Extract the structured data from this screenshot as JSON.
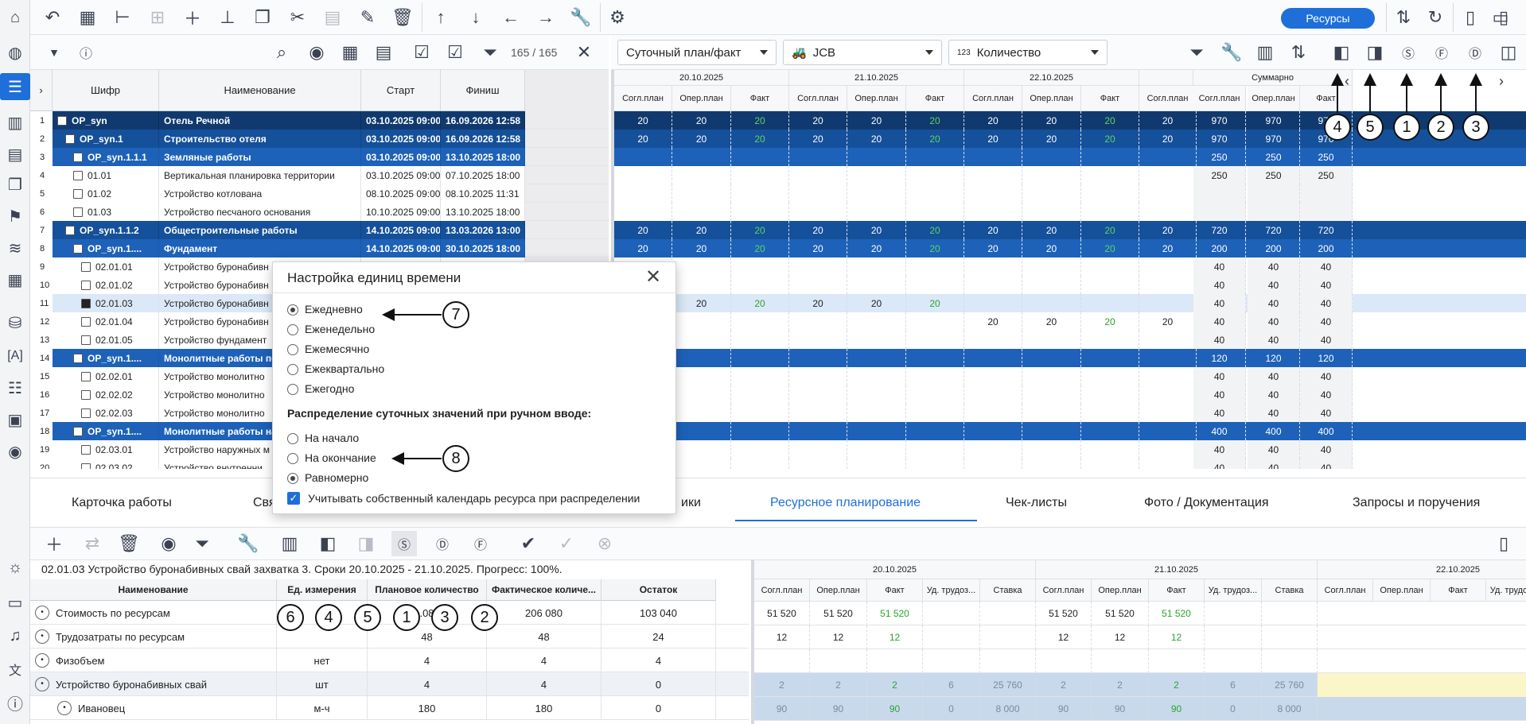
{
  "toolbar": {
    "resources_button": "Ресурсы"
  },
  "filter": {
    "count": "165 / 165"
  },
  "right_controls": {
    "mode": "Суточный план/факт",
    "resource": "JCB",
    "measure": "Количество",
    "summary": "Суммарно"
  },
  "columns": {
    "code": "Шифр",
    "name": "Наименование",
    "start": "Старт",
    "finish": "Финиш"
  },
  "dates": [
    "20.10.2025",
    "21.10.2025",
    "22.10.2025"
  ],
  "subcols": [
    "Согл.план",
    "Опер.план",
    "Факт"
  ],
  "tasks": [
    {
      "n": "1",
      "code": "OP_syn",
      "name": "Отель Речной",
      "start": "03.10.2025 09:00",
      "finish": "16.09.2026 12:58",
      "lvl": "lvl0",
      "ind": 0,
      "vals": [
        "20",
        "20",
        "20",
        "20",
        "20",
        "20",
        "20",
        "20",
        "20",
        "20"
      ],
      "sum": [
        "970",
        "970",
        "970"
      ]
    },
    {
      "n": "2",
      "code": "OP_syn.1",
      "name": "Строительство отеля",
      "start": "03.10.2025 09:00",
      "finish": "16.09.2026 12:58",
      "lvl": "lvl1",
      "ind": 1,
      "vals": [
        "20",
        "20",
        "20",
        "20",
        "20",
        "20",
        "20",
        "20",
        "20",
        "20"
      ],
      "sum": [
        "970",
        "970",
        "970"
      ]
    },
    {
      "n": "3",
      "code": "OP_syn.1.1.1",
      "name": "Земляные работы",
      "start": "03.10.2025 09:00",
      "finish": "13.10.2025 18:00",
      "lvl": "lvl2",
      "ind": 2,
      "vals": [
        "",
        "",
        "",
        "",
        "",
        "",
        "",
        "",
        "",
        ""
      ],
      "sum": [
        "250",
        "250",
        "250"
      ]
    },
    {
      "n": "4",
      "code": "01.01",
      "name": "Вертикальная планировка территории",
      "start": "03.10.2025 09:00",
      "finish": "07.10.2025 18:00",
      "lvl": "leaf",
      "ind": 2,
      "vals": [
        "",
        "",
        "",
        "",
        "",
        "",
        "",
        "",
        "",
        ""
      ],
      "sum": [
        "250",
        "250",
        "250"
      ]
    },
    {
      "n": "5",
      "code": "01.02",
      "name": "Устройство котлована",
      "start": "08.10.2025 09:00",
      "finish": "08.10.2025 11:31",
      "lvl": "leaf",
      "ind": 2,
      "vals": [
        "",
        "",
        "",
        "",
        "",
        "",
        "",
        "",
        "",
        ""
      ],
      "sum": [
        "",
        "",
        ""
      ]
    },
    {
      "n": "6",
      "code": "01.03",
      "name": "Устройство песчаного основания",
      "start": "10.10.2025 09:00",
      "finish": "13.10.2025 18:00",
      "lvl": "leaf",
      "ind": 2,
      "vals": [
        "",
        "",
        "",
        "",
        "",
        "",
        "",
        "",
        "",
        ""
      ],
      "sum": [
        "",
        "",
        ""
      ]
    },
    {
      "n": "7",
      "code": "OP_syn.1.1.2",
      "name": "Общестроительные работы",
      "start": "14.10.2025 09:00",
      "finish": "13.03.2026 13:00",
      "lvl": "lvl1",
      "ind": 1,
      "vals": [
        "20",
        "20",
        "20",
        "20",
        "20",
        "20",
        "20",
        "20",
        "20",
        "20"
      ],
      "sum": [
        "720",
        "720",
        "720"
      ]
    },
    {
      "n": "8",
      "code": "OP_syn.1....",
      "name": "Фундамент",
      "start": "14.10.2025 09:00",
      "finish": "30.10.2025 18:00",
      "lvl": "lvl2",
      "ind": 2,
      "vals": [
        "20",
        "20",
        "20",
        "20",
        "20",
        "20",
        "20",
        "20",
        "20",
        "20"
      ],
      "sum": [
        "200",
        "200",
        "200"
      ]
    },
    {
      "n": "9",
      "code": "02.01.01",
      "name": "Устройство буронабивн",
      "start": "",
      "finish": "",
      "lvl": "leaf",
      "ind": 3,
      "vals": [
        "",
        "",
        "",
        "",
        "",
        "",
        "",
        "",
        "",
        ""
      ],
      "sum": [
        "40",
        "40",
        "40"
      ]
    },
    {
      "n": "10",
      "code": "02.01.02",
      "name": "Устройство буронабивн",
      "start": "",
      "finish": "",
      "lvl": "leaf",
      "ind": 3,
      "vals": [
        "",
        "",
        "",
        "",
        "",
        "",
        "",
        "",
        "",
        ""
      ],
      "sum": [
        "40",
        "40",
        "40"
      ]
    },
    {
      "n": "11",
      "code": "02.01.03",
      "name": "Устройство буронабивн",
      "start": "",
      "finish": "",
      "lvl": "leaf sel",
      "ind": 3,
      "vals": [
        "",
        "20",
        "20",
        "20",
        "20",
        "20",
        "",
        "",
        "",
        ""
      ],
      "sum": [
        "40",
        "40",
        "40"
      ]
    },
    {
      "n": "12",
      "code": "02.01.04",
      "name": "Устройство буронабивн",
      "start": "",
      "finish": "",
      "lvl": "leaf",
      "ind": 3,
      "vals": [
        "",
        "",
        "",
        "",
        "",
        "",
        "20",
        "20",
        "20",
        "20"
      ],
      "sum": [
        "40",
        "40",
        "40"
      ]
    },
    {
      "n": "13",
      "code": "02.01.05",
      "name": "Устройство фундамент",
      "start": "",
      "finish": "",
      "lvl": "leaf",
      "ind": 3,
      "vals": [
        "",
        "",
        "",
        "",
        "",
        "",
        "",
        "",
        "",
        ""
      ],
      "sum": [
        "40",
        "40",
        "40"
      ]
    },
    {
      "n": "14",
      "code": "OP_syn.1....",
      "name": "Монолитные работы по",
      "start": "",
      "finish": "",
      "lvl": "lvl2",
      "ind": 2,
      "vals": [
        "",
        "",
        "",
        "",
        "",
        "",
        "",
        "",
        "",
        ""
      ],
      "sum": [
        "120",
        "120",
        "120"
      ]
    },
    {
      "n": "15",
      "code": "02.02.01",
      "name": "Устройство монолитно",
      "start": "",
      "finish": "",
      "lvl": "leaf",
      "ind": 3,
      "vals": [
        "",
        "",
        "",
        "",
        "",
        "",
        "",
        "",
        "",
        ""
      ],
      "sum": [
        "40",
        "40",
        "40"
      ]
    },
    {
      "n": "16",
      "code": "02.02.02",
      "name": "Устройство монолитно",
      "start": "",
      "finish": "",
      "lvl": "leaf",
      "ind": 3,
      "vals": [
        "",
        "",
        "",
        "",
        "",
        "",
        "",
        "",
        "",
        ""
      ],
      "sum": [
        "40",
        "40",
        "40"
      ]
    },
    {
      "n": "17",
      "code": "02.02.03",
      "name": "Устройство монолитно",
      "start": "",
      "finish": "",
      "lvl": "leaf",
      "ind": 3,
      "vals": [
        "",
        "",
        "",
        "",
        "",
        "",
        "",
        "",
        "",
        ""
      ],
      "sum": [
        "40",
        "40",
        "40"
      ]
    },
    {
      "n": "18",
      "code": "OP_syn.1....",
      "name": "Монолитные работы на",
      "start": "",
      "finish": "",
      "lvl": "lvl2",
      "ind": 2,
      "vals": [
        "",
        "",
        "",
        "",
        "",
        "",
        "",
        "",
        "",
        ""
      ],
      "sum": [
        "400",
        "400",
        "400"
      ]
    },
    {
      "n": "19",
      "code": "02.03.01",
      "name": "Устройство наружных м",
      "start": "",
      "finish": "",
      "lvl": "leaf",
      "ind": 3,
      "vals": [
        "",
        "",
        "",
        "",
        "",
        "",
        "",
        "",
        "",
        ""
      ],
      "sum": [
        "40",
        "40",
        "40"
      ]
    },
    {
      "n": "20",
      "code": "02.03.02",
      "name": "Устройство внутренни",
      "start": "",
      "finish": "",
      "lvl": "leaf",
      "ind": 3,
      "vals": [
        "",
        "",
        "",
        "",
        "",
        "",
        "",
        "",
        "",
        ""
      ],
      "sum": [
        "40",
        "40",
        "40"
      ]
    }
  ],
  "dialog": {
    "title": "Настройка единиц времени",
    "units": [
      "Ежедневно",
      "Еженедельно",
      "Ежемесячно",
      "Ежеквартально",
      "Ежегодно"
    ],
    "selected_unit": "Ежедневно",
    "dist_label": "Распределение суточных значений при ручном вводе:",
    "dist": [
      "На начало",
      "На окончание",
      "Равномерно"
    ],
    "selected_dist": "Равномерно",
    "calendar_label": "Учитывать собственный календарь ресурса при распределении"
  },
  "tabs": [
    "Карточка работы",
    "Связи",
    "ики",
    "Ресурсное планирование",
    "Чек-листы",
    "Фото / Документация",
    "Запросы и поручения"
  ],
  "active_tab": "Ресурсное планирование",
  "info": "02.01.03 Устройство буронабивных свай захватка 3. Сроки 20.10.2025 - 21.10.2025. Прогресс: 100%.",
  "bottom_cols": [
    "Наименование",
    "Ед. измерения",
    "Плановое количество",
    "Фактическое количе...",
    "Остаток"
  ],
  "bottom_subcols": [
    "Согл.план",
    "Опер.план",
    "Факт",
    "Уд. трудоз...",
    "Ставка"
  ],
  "bottom_rows": [
    {
      "name": "Стоимость по ресурсам",
      "unit": "",
      "plan": "...080",
      "fact": "206 080",
      "rest": "103 040",
      "d1": [
        "51 520",
        "51 520",
        "51 520",
        "",
        ""
      ],
      "d2": [
        "51 520",
        "51 520",
        "51 520",
        "",
        ""
      ]
    },
    {
      "name": "Трудозатраты по ресурсам",
      "unit": "",
      "plan": "48",
      "fact": "48",
      "rest": "24",
      "d1": [
        "12",
        "12",
        "12",
        "",
        ""
      ],
      "d2": [
        "12",
        "12",
        "12",
        "",
        ""
      ]
    },
    {
      "name": "Физобъем",
      "unit": "нет",
      "plan": "4",
      "fact": "4",
      "rest": "4",
      "d1": [
        "",
        "",
        "",
        "",
        ""
      ],
      "d2": [
        "",
        "",
        "",
        "",
        ""
      ]
    },
    {
      "name": "Устройство буронабивных свай",
      "unit": "шт",
      "plan": "4",
      "fact": "4",
      "rest": "0",
      "d1": [
        "2",
        "2",
        "2",
        "6",
        "25 760"
      ],
      "d2": [
        "2",
        "2",
        "2",
        "6",
        "25 760"
      ]
    },
    {
      "name": "Ивановец",
      "unit": "м-ч",
      "plan": "180",
      "fact": "180",
      "rest": "0",
      "d1": [
        "90",
        "90",
        "90",
        "0",
        "8 000"
      ],
      "d2": [
        "90",
        "90",
        "90",
        "0",
        "8 000"
      ]
    }
  ],
  "callouts_top": [
    "4",
    "5",
    "1",
    "2",
    "3"
  ],
  "callouts_bottom": [
    "6",
    "4",
    "5",
    "1",
    "3",
    "2"
  ],
  "callout7": "7",
  "callout8": "8",
  "icons": {
    "dialog_close": "close-icon"
  }
}
